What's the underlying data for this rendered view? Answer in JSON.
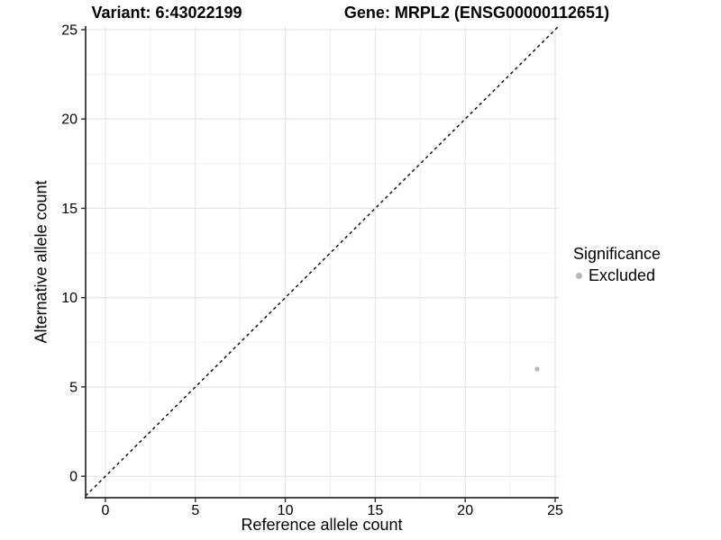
{
  "titles": {
    "variant": "Variant: 6:43022199",
    "gene": "Gene: MRPL2 (ENSG00000112651)"
  },
  "legend": {
    "title": "Significance",
    "entries": [
      {
        "label": "Excluded",
        "color": "#b5b5b5"
      }
    ]
  },
  "chart_data": {
    "type": "scatter",
    "title_left": "Variant: 6:43022199",
    "title_right": "Gene: MRPL2 (ENSG00000112651)",
    "xlabel": "Reference allele count",
    "ylabel": "Alternative allele count",
    "xticks": [
      0,
      5,
      10,
      15,
      20,
      25
    ],
    "yticks": [
      0,
      5,
      10,
      15,
      20,
      25
    ],
    "xlim": [
      -1.1,
      25.2
    ],
    "ylim": [
      -1.2,
      25.2
    ],
    "grid": true,
    "minor_grid_step": 2.5,
    "identity_line": {
      "equation": "y = x",
      "style": "dashed",
      "color": "#000000"
    },
    "series": [
      {
        "name": "Excluded",
        "color": "#b5b5b5",
        "points": [
          {
            "x": 24,
            "y": 6
          }
        ]
      }
    ],
    "legend_position": "right",
    "colors": {
      "background": "#ffffff",
      "grid_major": "#e4e4e4",
      "grid_minor": "#f0f0f0",
      "axis_line": "#2b2b2b",
      "tick_text": "#000000",
      "point": "#b5b5b5"
    }
  }
}
